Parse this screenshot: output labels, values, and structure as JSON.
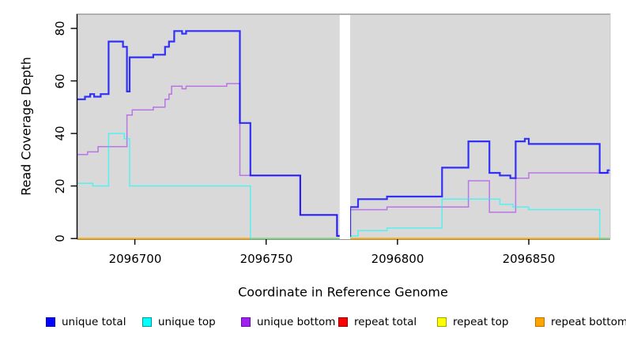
{
  "chart_data": {
    "type": "line",
    "style": "step-after",
    "title": "",
    "xlabel": "Coordinate in Reference Genome",
    "ylabel": "Read Coverage Depth",
    "xlim": [
      2096678,
      2096881
    ],
    "ylim": [
      0,
      80
    ],
    "x_ticks": [
      2096700,
      2096750,
      2096800,
      2096850
    ],
    "x_tick_labels": [
      "2096700",
      "2096750",
      "2096800",
      "2096850"
    ],
    "y_ticks": [
      0,
      20,
      40,
      60,
      80
    ],
    "y_tick_labels": [
      "0",
      "20",
      "40",
      "60",
      "80"
    ],
    "grid": false,
    "legend_position": "bottom",
    "plot_background": "#d9d9d9",
    "masked_region": {
      "x_start": 2096778,
      "x_end": 2096782
    },
    "points_semantics": "each [x, depth] pair holds until the next x (step function), extended to xlim max",
    "draw_order": [
      "repeat total",
      "repeat top",
      "repeat bottom",
      "unique bottom",
      "unique top",
      "unique total"
    ],
    "series": [
      {
        "name": "unique total",
        "color": "#0000FF",
        "swatch_border": "#000080",
        "width": 2.2,
        "alpha": 0.78,
        "points": [
          [
            2096678,
            53
          ],
          [
            2096681,
            54
          ],
          [
            2096683,
            55
          ],
          [
            2096684.5,
            54
          ],
          [
            2096687,
            55
          ],
          [
            2096690,
            75
          ],
          [
            2096695.5,
            73
          ],
          [
            2096697,
            56
          ],
          [
            2096698,
            69
          ],
          [
            2096707,
            70
          ],
          [
            2096711.5,
            73
          ],
          [
            2096713,
            75
          ],
          [
            2096715,
            79
          ],
          [
            2096718,
            78
          ],
          [
            2096719.5,
            79
          ],
          [
            2096740,
            44
          ],
          [
            2096744,
            24
          ],
          [
            2096763,
            9
          ],
          [
            2096777,
            1
          ],
          [
            2096782,
            12
          ],
          [
            2096785,
            15
          ],
          [
            2096796,
            16
          ],
          [
            2096817,
            27
          ],
          [
            2096827,
            37
          ],
          [
            2096835,
            25
          ],
          [
            2096839,
            24
          ],
          [
            2096843,
            23
          ],
          [
            2096845,
            37
          ],
          [
            2096848.5,
            38
          ],
          [
            2096850,
            36
          ],
          [
            2096877,
            25
          ],
          [
            2096880,
            26
          ]
        ]
      },
      {
        "name": "unique top",
        "color": "#00FFFF",
        "swatch_border": "#009999",
        "width": 1.5,
        "alpha": 0.6,
        "points": [
          [
            2096678,
            21
          ],
          [
            2096684,
            20
          ],
          [
            2096690,
            40
          ],
          [
            2096696,
            38
          ],
          [
            2096698,
            20
          ],
          [
            2096744,
            0
          ],
          [
            2096782,
            1
          ],
          [
            2096785,
            3
          ],
          [
            2096796,
            4
          ],
          [
            2096817,
            15
          ],
          [
            2096839,
            13
          ],
          [
            2096844,
            12
          ],
          [
            2096850,
            11
          ],
          [
            2096877,
            0
          ]
        ]
      },
      {
        "name": "unique bottom",
        "color": "#A020F0",
        "swatch_border": "#6A0DAD",
        "width": 1.5,
        "alpha": 0.55,
        "points": [
          [
            2096678,
            32
          ],
          [
            2096682,
            33
          ],
          [
            2096686,
            35
          ],
          [
            2096697,
            47
          ],
          [
            2096699,
            49
          ],
          [
            2096707,
            50
          ],
          [
            2096711.5,
            53
          ],
          [
            2096713,
            55
          ],
          [
            2096714,
            58
          ],
          [
            2096718,
            57
          ],
          [
            2096719.5,
            58
          ],
          [
            2096735,
            59
          ],
          [
            2096740,
            24
          ],
          [
            2096763,
            9
          ],
          [
            2096777,
            1
          ],
          [
            2096782,
            11
          ],
          [
            2096796,
            12
          ],
          [
            2096827,
            22
          ],
          [
            2096835,
            10
          ],
          [
            2096845,
            23
          ],
          [
            2096850,
            25
          ]
        ]
      },
      {
        "name": "repeat total",
        "color": "#FF0000",
        "swatch_border": "#8B0000",
        "width": 1.5,
        "alpha": 0.7,
        "points": [
          [
            2096678,
            0
          ]
        ]
      },
      {
        "name": "repeat top",
        "color": "#FFFF00",
        "swatch_border": "#A0A000",
        "width": 1.5,
        "alpha": 0.7,
        "points": [
          [
            2096678,
            0
          ]
        ]
      },
      {
        "name": "repeat bottom",
        "color": "#FFA500",
        "swatch_border": "#C07000",
        "width": 1.9,
        "alpha": 0.9,
        "points": [
          [
            2096678,
            0
          ]
        ]
      }
    ]
  }
}
